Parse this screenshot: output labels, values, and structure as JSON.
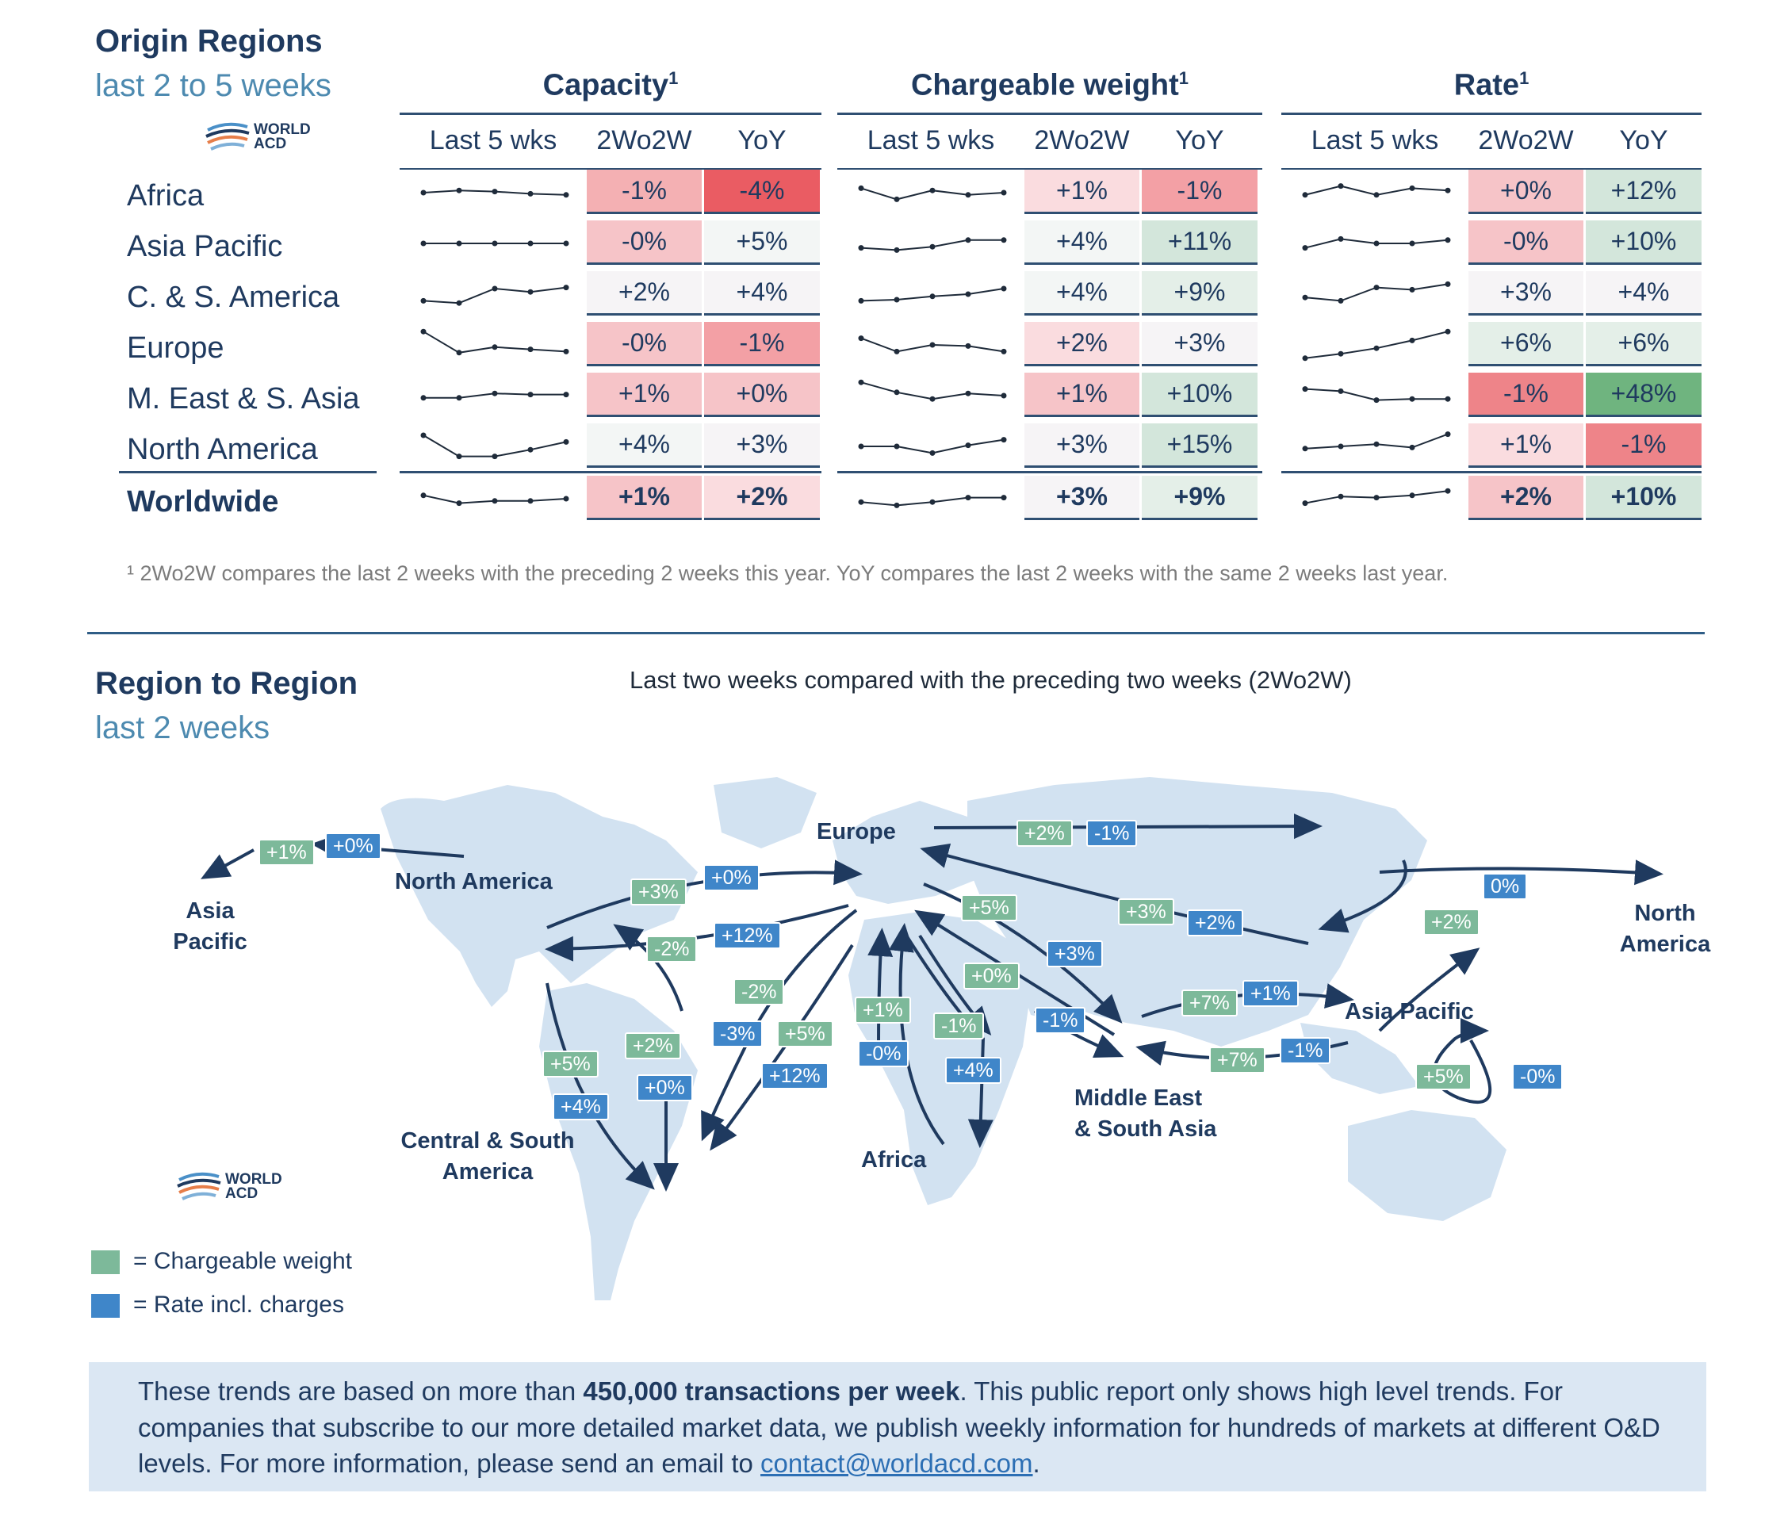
{
  "origin": {
    "title": "Origin Regions",
    "subtitle": "last 2 to 5 weeks",
    "logo_text": [
      "WORLD",
      "ACD"
    ],
    "groups": [
      {
        "title": "Capacity",
        "sup": "1"
      },
      {
        "title": "Chargeable weight",
        "sup": "1"
      },
      {
        "title": "Rate",
        "sup": "1"
      }
    ],
    "col_headers": [
      "Last 5 wks",
      "2Wo2W",
      "YoY"
    ],
    "rows": [
      {
        "label": "Africa",
        "bold": false,
        "cap": {
          "spark": [
            0,
            0.2,
            0.1,
            -0.1,
            -0.2
          ],
          "w": "-1%",
          "y": "-4%",
          "wc": "#f4b0b3",
          "yc": "#ea5c63"
        },
        "cw": {
          "spark": [
            0.4,
            -0.6,
            0.2,
            -0.2,
            0
          ],
          "w": "+1%",
          "y": "-1%",
          "wc": "#fadcdf",
          "yc": "#f3a0a5"
        },
        "rate": {
          "spark": [
            -0.2,
            0.6,
            -0.2,
            0.4,
            0.2
          ],
          "w": "+0%",
          "y": "+12%",
          "wc": "#f6c4c8",
          "yc": "#d3e6db"
        }
      },
      {
        "label": "Asia Pacific",
        "bold": false,
        "cap": {
          "spark": [
            0,
            0,
            0,
            0,
            0
          ],
          "w": "-0%",
          "y": "+5%",
          "wc": "#f6c4c8",
          "yc": "#f3f6f5"
        },
        "cw": {
          "spark": [
            -0.4,
            -0.6,
            -0.3,
            0.3,
            0.3
          ],
          "w": "+4%",
          "y": "+11%",
          "wc": "#f3f6f5",
          "yc": "#d3e6db"
        },
        "rate": {
          "spark": [
            -0.4,
            0.4,
            0,
            0,
            0.3
          ],
          "w": "-0%",
          "y": "+10%",
          "wc": "#f6c4c8",
          "yc": "#d3e6db"
        }
      },
      {
        "label": "C. & S. America",
        "bold": false,
        "cap": {
          "spark": [
            -0.6,
            -0.8,
            0.5,
            0.2,
            0.6
          ],
          "w": "+2%",
          "y": "+4%",
          "wc": "#f6f4f6",
          "yc": "#f6f4f6"
        },
        "cw": {
          "spark": [
            -0.6,
            -0.5,
            -0.2,
            0,
            0.5
          ],
          "w": "+4%",
          "y": "+9%",
          "wc": "#f3f6f5",
          "yc": "#e4efe8"
        },
        "rate": {
          "spark": [
            -0.3,
            -0.6,
            0.6,
            0.4,
            0.9
          ],
          "w": "+3%",
          "y": "+4%",
          "wc": "#f6f4f6",
          "yc": "#f6f4f6"
        }
      },
      {
        "label": "Europe",
        "bold": false,
        "cap": {
          "spark": [
            1.2,
            -0.7,
            -0.2,
            -0.4,
            -0.6
          ],
          "w": "-0%",
          "y": "-1%",
          "wc": "#f6c4c8",
          "yc": "#f3a0a5"
        },
        "cw": {
          "spark": [
            0.6,
            -0.6,
            0,
            -0.1,
            -0.6
          ],
          "w": "+2%",
          "y": "+3%",
          "wc": "#fadcdf",
          "yc": "#f6f4f6"
        },
        "rate": {
          "spark": [
            -1.2,
            -0.8,
            -0.3,
            0.4,
            1.2
          ],
          "w": "+6%",
          "y": "+6%",
          "wc": "#e4efe8",
          "yc": "#e4efe8"
        }
      },
      {
        "label": "M. East & S. Asia",
        "bold": false,
        "cap": {
          "spark": [
            -0.2,
            -0.2,
            0.2,
            0.1,
            0.1
          ],
          "w": "+1%",
          "y": "+0%",
          "wc": "#f6c4c8",
          "yc": "#f6c4c8"
        },
        "cw": {
          "spark": [
            1.2,
            0.3,
            -0.3,
            0.2,
            0
          ],
          "w": "+1%",
          "y": "+10%",
          "wc": "#f6c4c8",
          "yc": "#d3e6db"
        },
        "rate": {
          "spark": [
            0.6,
            0.4,
            -0.4,
            -0.3,
            -0.3
          ],
          "w": "-1%",
          "y": "+48%",
          "wc": "#ee8489",
          "yc": "#6fb47f"
        }
      },
      {
        "label": "North America",
        "bold": false,
        "cap": {
          "spark": [
            1,
            -0.9,
            -0.9,
            -0.3,
            0.4
          ],
          "w": "+4%",
          "y": "+3%",
          "wc": "#f3f6f5",
          "yc": "#f6f4f6"
        },
        "cw": {
          "spark": [
            0,
            0,
            -0.6,
            0.1,
            0.6
          ],
          "w": "+3%",
          "y": "+15%",
          "wc": "#f6f4f6",
          "yc": "#d3e6db"
        },
        "rate": {
          "spark": [
            -0.2,
            0,
            0.2,
            -0.1,
            1.1
          ],
          "w": "+1%",
          "y": "-1%",
          "wc": "#fadcdf",
          "yc": "#ee8489"
        }
      },
      {
        "label": "Worldwide",
        "bold": true,
        "cap": {
          "spark": [
            0.3,
            -0.4,
            -0.2,
            -0.2,
            0
          ],
          "w": "+1%",
          "y": "+2%",
          "wc": "#f6c4c8",
          "yc": "#fadcdf"
        },
        "cw": {
          "spark": [
            -0.3,
            -0.6,
            -0.3,
            0.1,
            0.1
          ],
          "w": "+3%",
          "y": "+9%",
          "wc": "#f6f4f6",
          "yc": "#e4efe8"
        },
        "rate": {
          "spark": [
            -0.4,
            0.2,
            0.1,
            0.3,
            0.7
          ],
          "w": "+2%",
          "y": "+10%",
          "wc": "#f6c4c8",
          "yc": "#d3e6db"
        }
      }
    ],
    "footnote": "¹ 2Wo2W compares the last 2 weeks with the preceding 2 weeks this year. YoY compares the last 2 weeks with the same 2 weeks last year."
  },
  "r2r": {
    "title": "Region to Region",
    "subtitle": "last 2 weeks",
    "caption": "Last two weeks compared with the preceding two weeks (2Wo2W)",
    "labels": {
      "asia_pacific_left": "Asia\nPacific",
      "north_america": "North America",
      "europe": "Europe",
      "north_america_right": "North\nAmerica",
      "asia_pacific": "Asia Pacific",
      "csa": "Central & South\nAmerica",
      "africa": "Africa",
      "mesa": "Middle East\n& South Asia"
    },
    "tags": [
      {
        "t": "+1%",
        "c": "g"
      },
      {
        "t": "+0%",
        "c": "b"
      },
      {
        "t": "+3%",
        "c": "g"
      },
      {
        "t": "+0%",
        "c": "b"
      },
      {
        "t": "-2%",
        "c": "g"
      },
      {
        "t": "+12%",
        "c": "b"
      },
      {
        "t": "+2%",
        "c": "g"
      },
      {
        "t": "-1%",
        "c": "b"
      },
      {
        "t": "+5%",
        "c": "g"
      },
      {
        "t": "+3%",
        "c": "g"
      },
      {
        "t": "+2%",
        "c": "b"
      },
      {
        "t": "+3%",
        "c": "b"
      },
      {
        "t": "+0%",
        "c": "g"
      },
      {
        "t": "-1%",
        "c": "b"
      },
      {
        "t": "0%",
        "c": "b"
      },
      {
        "t": "+2%",
        "c": "g"
      },
      {
        "t": "+7%",
        "c": "g"
      },
      {
        "t": "+1%",
        "c": "b"
      },
      {
        "t": "+7%",
        "c": "g"
      },
      {
        "t": "-1%",
        "c": "b"
      },
      {
        "t": "+5%",
        "c": "g"
      },
      {
        "t": "-0%",
        "c": "b"
      },
      {
        "t": "-2%",
        "c": "g"
      },
      {
        "t": "-3%",
        "c": "b"
      },
      {
        "t": "+5%",
        "c": "g"
      },
      {
        "t": "+12%",
        "c": "b"
      },
      {
        "t": "+1%",
        "c": "g"
      },
      {
        "t": "-0%",
        "c": "b"
      },
      {
        "t": "-1%",
        "c": "g"
      },
      {
        "t": "+4%",
        "c": "b"
      },
      {
        "t": "+5%",
        "c": "g"
      },
      {
        "t": "+4%",
        "c": "b"
      },
      {
        "t": "+2%",
        "c": "g"
      },
      {
        "t": "+0%",
        "c": "b"
      }
    ],
    "legend": [
      {
        "label": "=  Chargeable weight",
        "color": "#7db99a"
      },
      {
        "label": "=  Rate incl. charges",
        "color": "#3f86c9"
      }
    ]
  },
  "info": {
    "p1": "These trends are based on more than ",
    "bold": "450,000 transactions per week",
    "p2": ". This public report only shows high level trends. For companies that subscribe to our more detailed market data, we publish weekly information for hundreds of markets at different O&D levels. For more information, please send an email to ",
    "email": "contact@worldacd.com",
    "p3": "."
  }
}
